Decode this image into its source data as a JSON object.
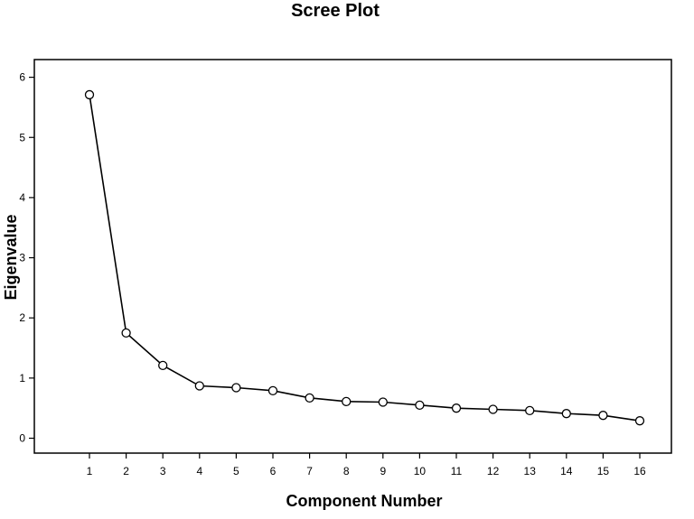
{
  "chart_data": {
    "type": "line",
    "title": "Scree Plot",
    "xlabel": "Component Number",
    "ylabel": "Eigenvalue",
    "x": [
      1,
      2,
      3,
      4,
      5,
      6,
      7,
      8,
      9,
      10,
      11,
      12,
      13,
      14,
      15,
      16
    ],
    "xticks": [
      "1",
      "2",
      "3",
      "4",
      "5",
      "6",
      "7",
      "8",
      "9",
      "10",
      "11",
      "12",
      "13",
      "14",
      "15",
      "16"
    ],
    "yticks": [
      "0",
      "1",
      "2",
      "3",
      "4",
      "5",
      "6"
    ],
    "series": [
      {
        "values": [
          5.71,
          1.75,
          1.21,
          0.87,
          0.84,
          0.79,
          0.67,
          0.61,
          0.6,
          0.55,
          0.5,
          0.48,
          0.46,
          0.41,
          0.38,
          0.29
        ]
      }
    ],
    "xlim": [
      0,
      17
    ],
    "ylim": [
      -0.2,
      6.3
    ],
    "marker": "open-circle",
    "grid": false,
    "legend": "none",
    "colors": {
      "line": "#000000",
      "marker_stroke": "#000000",
      "marker_fill": "#ffffff",
      "frame": "#000000"
    }
  }
}
